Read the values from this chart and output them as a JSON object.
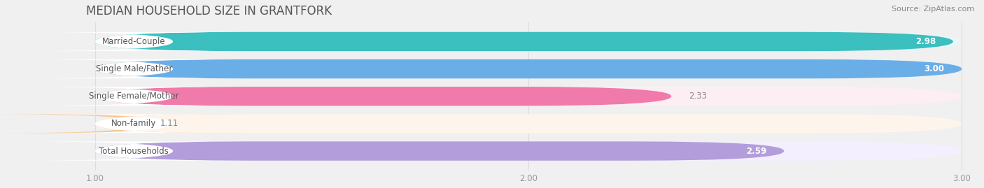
{
  "title": "MEDIAN HOUSEHOLD SIZE IN GRANTFORK",
  "source": "Source: ZipAtlas.com",
  "categories": [
    "Married-Couple",
    "Single Male/Father",
    "Single Female/Mother",
    "Non-family",
    "Total Households"
  ],
  "values": [
    2.98,
    3.0,
    2.33,
    1.11,
    2.59
  ],
  "bar_colors": [
    "#3bbfbf",
    "#6aaee8",
    "#f07aaa",
    "#f5c897",
    "#b39ddb"
  ],
  "bar_bg_colors": [
    "#e8f8f8",
    "#eaf2fc",
    "#fdeef4",
    "#fdf5eb",
    "#f3effe"
  ],
  "label_text_colors": [
    "#3bbfbf",
    "#6aaee8",
    "#e06090",
    "#c8962a",
    "#9a7fbc"
  ],
  "x_min": 1.0,
  "x_max": 3.0,
  "x_ticks": [
    1.0,
    2.0,
    3.0
  ],
  "bar_height": 0.7,
  "label_fontsize": 8.5,
  "value_fontsize": 8.5,
  "title_fontsize": 12,
  "source_fontsize": 8,
  "background_color": "#ffffff",
  "fig_bg_color": "#f0f0f0"
}
